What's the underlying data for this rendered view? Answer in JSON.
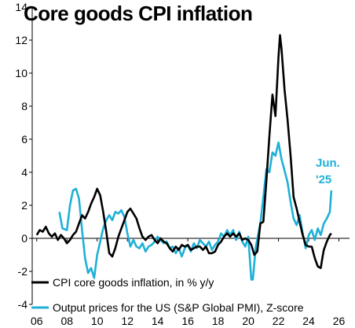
{
  "chart_data": {
    "type": "line",
    "title": "Core goods CPI inflation",
    "xlabel": "",
    "ylabel": "",
    "xlim": [
      2005.7,
      2026.7
    ],
    "ylim": [
      -4,
      14
    ],
    "yticks": [
      "-4",
      "-2",
      "0",
      "2",
      "4",
      "6",
      "8",
      "10",
      "12",
      "14"
    ],
    "xticks": [
      "06",
      "08",
      "10",
      "12",
      "14",
      "16",
      "18",
      "20",
      "22",
      "24",
      "26"
    ],
    "annotation": [
      "Jun.",
      "'25"
    ],
    "legend_position": "bottom-left",
    "series": [
      {
        "name": "CPI core goods inflation, in % y/y",
        "color": "#000000",
        "points": [
          [
            2006.0,
            0.2
          ],
          [
            2006.2,
            0.5
          ],
          [
            2006.4,
            0.4
          ],
          [
            2006.6,
            0.7
          ],
          [
            2006.8,
            0.3
          ],
          [
            2007.0,
            0.1
          ],
          [
            2007.2,
            0.3
          ],
          [
            2007.4,
            -0.1
          ],
          [
            2007.6,
            0.2
          ],
          [
            2007.8,
            0.0
          ],
          [
            2008.0,
            -0.3
          ],
          [
            2008.2,
            -0.1
          ],
          [
            2008.4,
            0.2
          ],
          [
            2008.6,
            0.4
          ],
          [
            2008.8,
            0.9
          ],
          [
            2009.0,
            1.4
          ],
          [
            2009.2,
            1.2
          ],
          [
            2009.4,
            1.6
          ],
          [
            2009.6,
            2.1
          ],
          [
            2009.8,
            2.5
          ],
          [
            2010.0,
            3.0
          ],
          [
            2010.2,
            2.6
          ],
          [
            2010.4,
            1.6
          ],
          [
            2010.6,
            0.4
          ],
          [
            2010.8,
            -0.9
          ],
          [
            2011.0,
            -1.1
          ],
          [
            2011.2,
            -0.6
          ],
          [
            2011.4,
            0.1
          ],
          [
            2011.6,
            0.6
          ],
          [
            2011.8,
            1.1
          ],
          [
            2012.0,
            1.6
          ],
          [
            2012.2,
            1.8
          ],
          [
            2012.4,
            1.5
          ],
          [
            2012.6,
            1.2
          ],
          [
            2012.8,
            0.6
          ],
          [
            2013.0,
            0.1
          ],
          [
            2013.2,
            -0.1
          ],
          [
            2013.4,
            0.1
          ],
          [
            2013.6,
            0.2
          ],
          [
            2013.8,
            -0.1
          ],
          [
            2014.0,
            -0.3
          ],
          [
            2014.2,
            0.0
          ],
          [
            2014.4,
            -0.2
          ],
          [
            2014.6,
            -0.3
          ],
          [
            2014.8,
            -0.6
          ],
          [
            2015.0,
            -0.8
          ],
          [
            2015.2,
            -0.5
          ],
          [
            2015.4,
            -0.7
          ],
          [
            2015.6,
            -0.4
          ],
          [
            2015.8,
            -0.5
          ],
          [
            2016.0,
            -0.4
          ],
          [
            2016.2,
            -0.7
          ],
          [
            2016.4,
            -0.6
          ],
          [
            2016.6,
            -0.5
          ],
          [
            2016.8,
            -0.5
          ],
          [
            2017.0,
            -0.7
          ],
          [
            2017.2,
            -0.5
          ],
          [
            2017.4,
            -0.9
          ],
          [
            2017.6,
            -0.9
          ],
          [
            2017.8,
            -0.8
          ],
          [
            2018.0,
            -0.4
          ],
          [
            2018.2,
            -0.2
          ],
          [
            2018.4,
            0.1
          ],
          [
            2018.6,
            0.3
          ],
          [
            2018.8,
            0.1
          ],
          [
            2019.0,
            0.3
          ],
          [
            2019.2,
            0.1
          ],
          [
            2019.4,
            0.3
          ],
          [
            2019.6,
            -0.1
          ],
          [
            2019.8,
            0.0
          ],
          [
            2020.0,
            -0.1
          ],
          [
            2020.2,
            -0.4
          ],
          [
            2020.4,
            -1.0
          ],
          [
            2020.6,
            -0.8
          ],
          [
            2020.8,
            0.9
          ],
          [
            2021.0,
            1.0
          ],
          [
            2021.2,
            3.5
          ],
          [
            2021.4,
            6.2
          ],
          [
            2021.6,
            8.7
          ],
          [
            2021.8,
            7.4
          ],
          [
            2022.0,
            11.0
          ],
          [
            2022.1,
            12.3
          ],
          [
            2022.2,
            11.5
          ],
          [
            2022.4,
            9.0
          ],
          [
            2022.6,
            7.2
          ],
          [
            2022.8,
            5.0
          ],
          [
            2023.0,
            2.5
          ],
          [
            2023.2,
            1.8
          ],
          [
            2023.4,
            1.0
          ],
          [
            2023.6,
            0.2
          ],
          [
            2023.8,
            -0.4
          ],
          [
            2024.0,
            -0.5
          ],
          [
            2024.2,
            -0.5
          ],
          [
            2024.4,
            -1.2
          ],
          [
            2024.6,
            -1.7
          ],
          [
            2024.8,
            -1.8
          ],
          [
            2024.9,
            -1.2
          ],
          [
            2025.0,
            -0.7
          ],
          [
            2025.2,
            -0.2
          ],
          [
            2025.4,
            0.2
          ],
          [
            2025.5,
            0.3
          ]
        ]
      },
      {
        "name": "Output prices for the US (S&P Global PMI), Z-score",
        "color": "#1fb0d8",
        "points": [
          [
            2007.5,
            1.6
          ],
          [
            2007.7,
            0.6
          ],
          [
            2008.0,
            0.5
          ],
          [
            2008.2,
            2.0
          ],
          [
            2008.4,
            2.9
          ],
          [
            2008.6,
            3.0
          ],
          [
            2008.8,
            2.4
          ],
          [
            2009.0,
            0.5
          ],
          [
            2009.2,
            -1.2
          ],
          [
            2009.4,
            -2.1
          ],
          [
            2009.6,
            -1.8
          ],
          [
            2009.8,
            -2.4
          ],
          [
            2010.0,
            -1.0
          ],
          [
            2010.2,
            -0.2
          ],
          [
            2010.4,
            0.6
          ],
          [
            2010.6,
            1.1
          ],
          [
            2010.8,
            1.4
          ],
          [
            2011.0,
            1.1
          ],
          [
            2011.2,
            1.6
          ],
          [
            2011.4,
            1.5
          ],
          [
            2011.6,
            1.7
          ],
          [
            2011.8,
            1.3
          ],
          [
            2012.0,
            0.3
          ],
          [
            2012.2,
            -0.5
          ],
          [
            2012.4,
            -0.1
          ],
          [
            2012.6,
            -0.5
          ],
          [
            2012.8,
            -0.6
          ],
          [
            2013.0,
            -0.3
          ],
          [
            2013.2,
            -0.8
          ],
          [
            2013.4,
            -0.5
          ],
          [
            2013.6,
            -0.4
          ],
          [
            2013.8,
            -0.2
          ],
          [
            2014.0,
            0.1
          ],
          [
            2014.2,
            -0.1
          ],
          [
            2014.4,
            -0.3
          ],
          [
            2014.6,
            -0.2
          ],
          [
            2014.8,
            -0.6
          ],
          [
            2015.0,
            -0.5
          ],
          [
            2015.2,
            -0.9
          ],
          [
            2015.4,
            -0.6
          ],
          [
            2015.6,
            -1.1
          ],
          [
            2015.8,
            -0.6
          ],
          [
            2016.0,
            -0.4
          ],
          [
            2016.2,
            -0.8
          ],
          [
            2016.4,
            -0.3
          ],
          [
            2016.6,
            -0.6
          ],
          [
            2016.8,
            -0.1
          ],
          [
            2017.0,
            -0.3
          ],
          [
            2017.2,
            -0.5
          ],
          [
            2017.4,
            -0.2
          ],
          [
            2017.6,
            -0.7
          ],
          [
            2017.8,
            -0.4
          ],
          [
            2018.0,
            -0.2
          ],
          [
            2018.2,
            0.3
          ],
          [
            2018.4,
            0.1
          ],
          [
            2018.6,
            0.5
          ],
          [
            2018.8,
            0.2
          ],
          [
            2019.0,
            0.5
          ],
          [
            2019.2,
            -0.1
          ],
          [
            2019.4,
            0.4
          ],
          [
            2019.6,
            -0.2
          ],
          [
            2019.8,
            -0.5
          ],
          [
            2020.0,
            0.1
          ],
          [
            2020.2,
            -2.5
          ],
          [
            2020.3,
            -2.5
          ],
          [
            2020.5,
            -0.5
          ],
          [
            2020.8,
            0.9
          ],
          [
            2021.0,
            2.5
          ],
          [
            2021.2,
            4.2
          ],
          [
            2021.4,
            4.0
          ],
          [
            2021.6,
            5.2
          ],
          [
            2021.8,
            5.0
          ],
          [
            2022.0,
            5.8
          ],
          [
            2022.2,
            4.8
          ],
          [
            2022.4,
            4.1
          ],
          [
            2022.6,
            3.4
          ],
          [
            2022.8,
            2.2
          ],
          [
            2023.0,
            1.2
          ],
          [
            2023.2,
            0.8
          ],
          [
            2023.4,
            1.4
          ],
          [
            2023.6,
            0.3
          ],
          [
            2023.8,
            -0.6
          ],
          [
            2024.0,
            0.2
          ],
          [
            2024.2,
            0.5
          ],
          [
            2024.4,
            -0.1
          ],
          [
            2024.6,
            0.6
          ],
          [
            2024.8,
            0.2
          ],
          [
            2025.0,
            0.9
          ],
          [
            2025.2,
            1.2
          ],
          [
            2025.4,
            1.6
          ],
          [
            2025.5,
            2.9
          ]
        ]
      }
    ]
  }
}
